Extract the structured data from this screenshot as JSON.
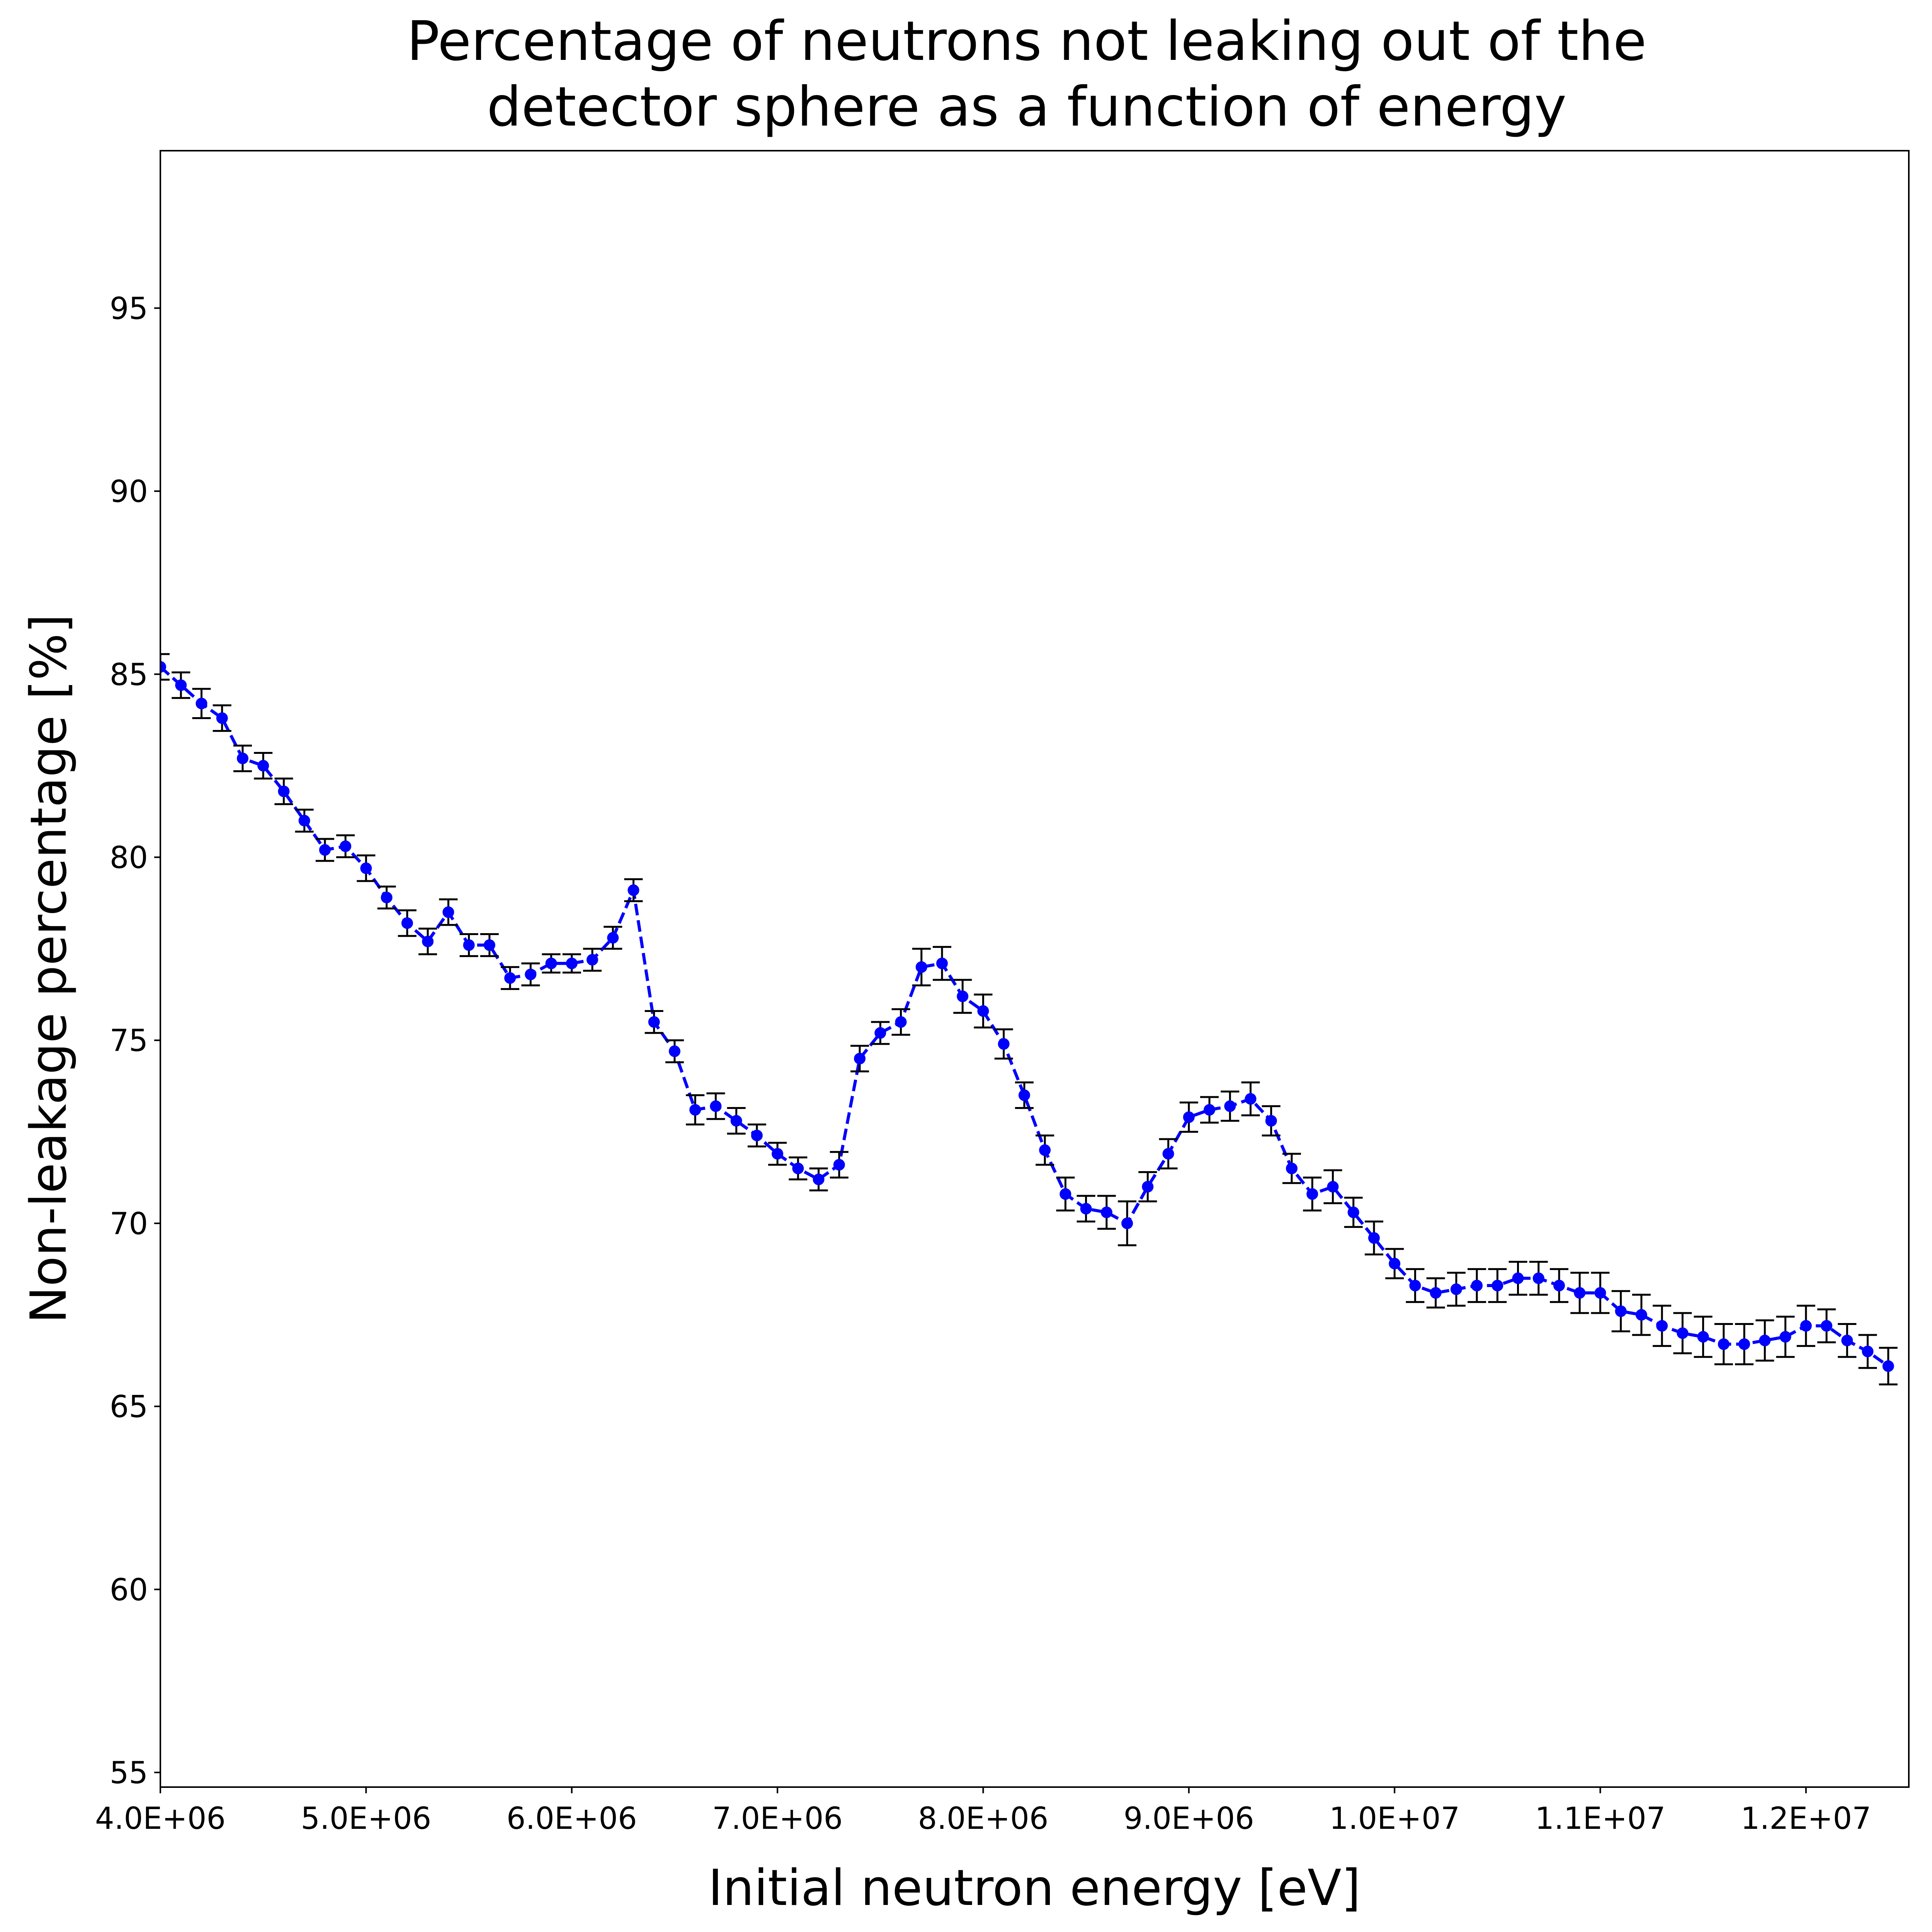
{
  "chart_data": {
    "type": "line",
    "title": [
      "Percentage of neutrons not leaking out of the",
      "detector sphere as a function of energy"
    ],
    "xlabel": "Initial neutron energy [eV]",
    "ylabel": "Non-leakage percentage [%]",
    "xlim": [
      4000000,
      12500000
    ],
    "ylim": [
      54.6,
      99.3
    ],
    "grid": false,
    "legend": "none",
    "x_ticks": [
      {
        "value": 4000000,
        "label": "4.0E+06"
      },
      {
        "value": 5000000,
        "label": "5.0E+06"
      },
      {
        "value": 6000000,
        "label": "6.0E+06"
      },
      {
        "value": 7000000,
        "label": "7.0E+06"
      },
      {
        "value": 8000000,
        "label": "8.0E+06"
      },
      {
        "value": 9000000,
        "label": "9.0E+06"
      },
      {
        "value": 10000000,
        "label": "1.0E+07"
      },
      {
        "value": 11000000,
        "label": "1.1E+07"
      },
      {
        "value": 12000000,
        "label": "1.2E+07"
      }
    ],
    "y_ticks": [
      {
        "value": 55,
        "label": "55"
      },
      {
        "value": 60,
        "label": "60"
      },
      {
        "value": 65,
        "label": "65"
      },
      {
        "value": 70,
        "label": "70"
      },
      {
        "value": 75,
        "label": "75"
      },
      {
        "value": 80,
        "label": "80"
      },
      {
        "value": 85,
        "label": "85"
      },
      {
        "value": 90,
        "label": "90"
      },
      {
        "value": 95,
        "label": "95"
      }
    ],
    "series": [
      {
        "color": "#0000ff",
        "errorbar_color": "#000000",
        "line_style": "dashed",
        "marker": "circle",
        "x_start": 4000000,
        "x_step": 100000,
        "y": [
          85.2,
          84.7,
          84.2,
          83.8,
          82.7,
          82.5,
          81.8,
          81.0,
          80.2,
          80.3,
          79.7,
          78.9,
          78.2,
          77.7,
          78.5,
          77.6,
          77.6,
          76.7,
          76.8,
          77.1,
          77.1,
          77.2,
          77.8,
          79.1,
          75.5,
          74.7,
          73.1,
          73.2,
          72.8,
          72.4,
          71.9,
          71.5,
          71.2,
          71.6,
          74.5,
          75.2,
          75.5,
          77.0,
          77.1,
          76.2,
          75.8,
          74.9,
          73.5,
          72.0,
          70.8,
          70.4,
          70.3,
          70.0,
          71.0,
          71.9,
          72.9,
          73.1,
          73.2,
          73.4,
          72.8,
          71.5,
          70.8,
          71.0,
          70.3,
          69.6,
          68.9,
          68.3,
          68.1,
          68.2,
          68.3,
          68.3,
          68.5,
          68.5,
          68.3,
          68.1,
          68.1,
          67.6,
          67.5,
          67.2,
          67.0,
          66.9,
          66.7,
          66.7,
          66.8,
          66.9,
          67.2,
          67.2,
          66.8,
          66.5,
          66.1
        ],
        "err": [
          0.35,
          0.35,
          0.4,
          0.35,
          0.35,
          0.35,
          0.35,
          0.3,
          0.3,
          0.3,
          0.35,
          0.3,
          0.35,
          0.35,
          0.35,
          0.3,
          0.3,
          0.3,
          0.3,
          0.25,
          0.25,
          0.3,
          0.3,
          0.3,
          0.3,
          0.3,
          0.4,
          0.35,
          0.35,
          0.3,
          0.3,
          0.3,
          0.3,
          0.35,
          0.35,
          0.3,
          0.35,
          0.5,
          0.45,
          0.45,
          0.45,
          0.4,
          0.35,
          0.4,
          0.45,
          0.35,
          0.45,
          0.6,
          0.4,
          0.4,
          0.4,
          0.35,
          0.4,
          0.45,
          0.4,
          0.4,
          0.45,
          0.45,
          0.4,
          0.45,
          0.4,
          0.45,
          0.4,
          0.45,
          0.45,
          0.45,
          0.45,
          0.45,
          0.45,
          0.55,
          0.55,
          0.55,
          0.55,
          0.55,
          0.55,
          0.55,
          0.55,
          0.55,
          0.55,
          0.55,
          0.55,
          0.45,
          0.45,
          0.45,
          0.5
        ]
      }
    ]
  }
}
